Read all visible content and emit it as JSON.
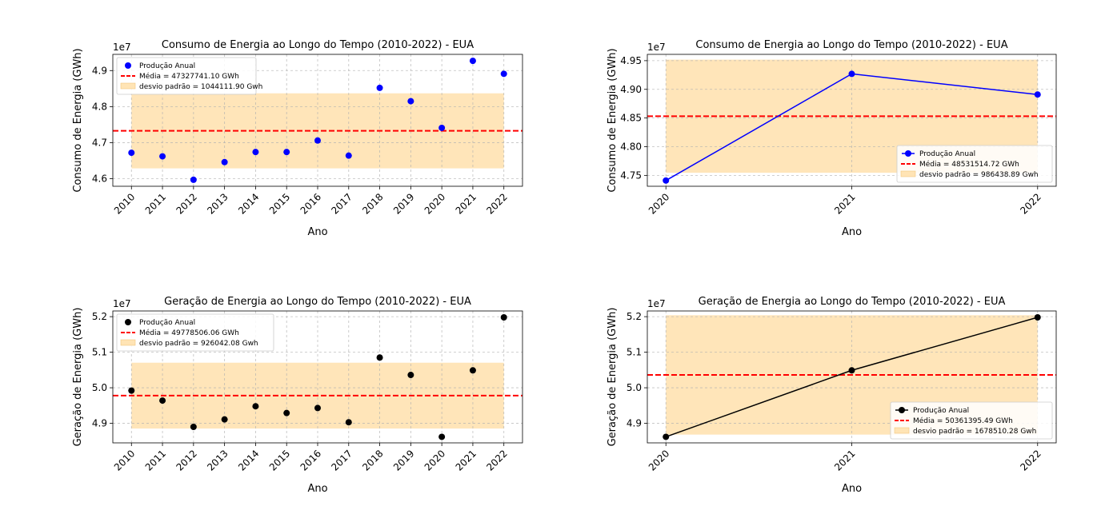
{
  "chart_data": [
    {
      "type": "scatter",
      "title": "Consumo de Energia ao Longo do Tempo (2010-2022) - EUA",
      "xlabel": "Ano",
      "ylabel": "Consumo de Energia (GWh)",
      "y_multiplier": "1e7",
      "x": [
        2010,
        2011,
        2012,
        2013,
        2014,
        2015,
        2016,
        2017,
        2018,
        2019,
        2020,
        2021,
        2022
      ],
      "x_ticks": [
        "2010",
        "2011",
        "2012",
        "2013",
        "2014",
        "2015",
        "2016",
        "2017",
        "2018",
        "2019",
        "2020",
        "2021",
        "2022"
      ],
      "y_ticks": [
        "4.6",
        "4.7",
        "4.8",
        "4.9"
      ],
      "y_tick_values": [
        4.6,
        4.7,
        4.8,
        4.9
      ],
      "ylim": [
        4.579,
        4.945
      ],
      "series": [
        {
          "name": "Produção Anual",
          "values": [
            4.672,
            4.662,
            4.597,
            4.646,
            4.674,
            4.674,
            4.706,
            4.664,
            4.852,
            4.815,
            4.741,
            4.927,
            4.891
          ],
          "color": "#0000ff"
        }
      ],
      "mean": 4.7327741,
      "mean_label": "Média = 47327741.10 GWh",
      "band": [
        4.628663,
        4.836885
      ],
      "band_label": "desvio padrão = 1044111.90 Gwh",
      "band_color": "#ffe4b5",
      "mean_color": "#ff0000",
      "legend_position": "upper left",
      "grid": true
    },
    {
      "type": "line",
      "title": "Consumo de Energia ao Longo do Tempo (2010-2022) - EUA",
      "xlabel": "Ano",
      "ylabel": "Consumo de Energia (GWh)",
      "y_multiplier": "1e7",
      "x": [
        2020,
        2021,
        2022
      ],
      "x_ticks": [
        "2020",
        "2021",
        "2022"
      ],
      "y_ticks": [
        "4.75",
        "4.80",
        "4.85",
        "4.90",
        "4.95"
      ],
      "y_tick_values": [
        4.75,
        4.8,
        4.85,
        4.9,
        4.95
      ],
      "ylim": [
        4.731,
        4.961
      ],
      "series": [
        {
          "name": "Produção Anual",
          "values": [
            4.741,
            4.927,
            4.891
          ],
          "color": "#0000ff"
        }
      ],
      "mean": 4.8531515,
      "mean_label": "Média = 48531514.72 GWh",
      "band": [
        4.754508,
        4.951795
      ],
      "band_label": "desvio padrão = 986438.89 Gwh",
      "band_color": "#ffe4b5",
      "mean_color": "#ff0000",
      "legend_position": "lower right",
      "grid": true
    },
    {
      "type": "scatter",
      "title": "Geração de Energia ao Longo do Tempo (2010-2022) - EUA",
      "xlabel": "Ano",
      "ylabel": "Geração de Energia (GWh)",
      "y_multiplier": "1e7",
      "x": [
        2010,
        2011,
        2012,
        2013,
        2014,
        2015,
        2016,
        2017,
        2018,
        2019,
        2020,
        2021,
        2022
      ],
      "x_ticks": [
        "2010",
        "2011",
        "2012",
        "2013",
        "2014",
        "2015",
        "2016",
        "2017",
        "2018",
        "2019",
        "2020",
        "2021",
        "2022"
      ],
      "y_ticks": [
        "4.9",
        "5.0",
        "5.1",
        "5.2"
      ],
      "y_tick_values": [
        4.9,
        5.0,
        5.1,
        5.2
      ],
      "ylim": [
        4.845,
        5.216
      ],
      "series": [
        {
          "name": "Produção Anual",
          "values": [
            4.992,
            4.964,
            4.89,
            4.911,
            4.948,
            4.929,
            4.943,
            4.903,
            5.085,
            5.036,
            4.862,
            5.049,
            5.198
          ],
          "color": "#000000"
        }
      ],
      "mean": 4.9778506,
      "mean_label": "Média = 49778506.06 GWh",
      "band": [
        4.885246,
        5.070455
      ],
      "band_label": "desvio padrão = 926042.08 Gwh",
      "band_color": "#ffe4b5",
      "mean_color": "#ff0000",
      "legend_position": "upper left",
      "grid": true
    },
    {
      "type": "line",
      "title": "Geração de Energia ao Longo do Tempo (2010-2022) - EUA",
      "xlabel": "Ano",
      "ylabel": "Geração de Energia (GWh)",
      "y_multiplier": "1e7",
      "x": [
        2020,
        2021,
        2022
      ],
      "x_ticks": [
        "2020",
        "2021",
        "2022"
      ],
      "y_ticks": [
        "4.9",
        "5.0",
        "5.1",
        "5.2"
      ],
      "y_tick_values": [
        4.9,
        5.0,
        5.1,
        5.2
      ],
      "ylim": [
        4.845,
        5.216
      ],
      "series": [
        {
          "name": "Produção Anual",
          "values": [
            4.862,
            5.049,
            5.198
          ],
          "color": "#000000"
        }
      ],
      "mean": 5.0361395,
      "mean_label": "Média = 50361395.49 GWh",
      "band": [
        4.868289,
        5.20399
      ],
      "band_label": "desvio padrão = 1678510.28 Gwh",
      "band_color": "#ffe4b5",
      "mean_color": "#ff0000",
      "legend_position": "lower right",
      "grid": true
    }
  ]
}
